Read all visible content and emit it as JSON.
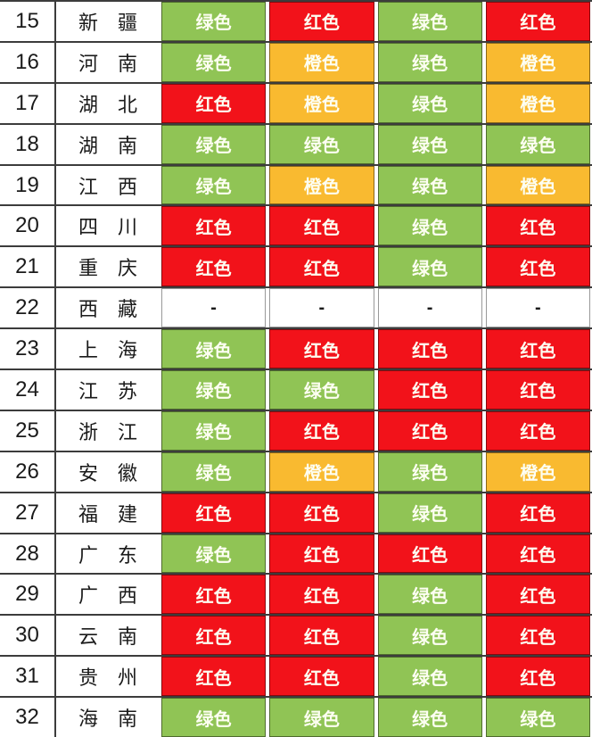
{
  "chart_data": {
    "type": "table",
    "status_labels": {
      "green": "绿色",
      "red": "红色",
      "orange": "橙色",
      "none": "-"
    },
    "status_colors": {
      "green": "#90C455",
      "red": "#F2121A",
      "orange": "#F9BA30",
      "none": "#FFFFFF"
    },
    "grid_color": "#3C3C3C",
    "status_text_color": "#FDFEF2",
    "none_text_color": "#1A1A1A",
    "rows": [
      {
        "num": "15",
        "province": "新　疆",
        "statuses": [
          "green",
          "red",
          "green",
          "red"
        ]
      },
      {
        "num": "16",
        "province": "河　南",
        "statuses": [
          "green",
          "orange",
          "green",
          "orange"
        ]
      },
      {
        "num": "17",
        "province": "湖　北",
        "statuses": [
          "red",
          "orange",
          "green",
          "orange"
        ]
      },
      {
        "num": "18",
        "province": "湖　南",
        "statuses": [
          "green",
          "green",
          "green",
          "green"
        ]
      },
      {
        "num": "19",
        "province": "江　西",
        "statuses": [
          "green",
          "orange",
          "green",
          "orange"
        ]
      },
      {
        "num": "20",
        "province": "四　川",
        "statuses": [
          "red",
          "red",
          "green",
          "red"
        ]
      },
      {
        "num": "21",
        "province": "重　庆",
        "statuses": [
          "red",
          "red",
          "green",
          "red"
        ]
      },
      {
        "num": "22",
        "province": "西　藏",
        "statuses": [
          "none",
          "none",
          "none",
          "none"
        ]
      },
      {
        "num": "23",
        "province": "上　海",
        "statuses": [
          "green",
          "red",
          "red",
          "red"
        ]
      },
      {
        "num": "24",
        "province": "江　苏",
        "statuses": [
          "green",
          "green",
          "red",
          "red"
        ]
      },
      {
        "num": "25",
        "province": "浙　江",
        "statuses": [
          "green",
          "red",
          "red",
          "red"
        ]
      },
      {
        "num": "26",
        "province": "安　徽",
        "statuses": [
          "green",
          "orange",
          "green",
          "orange"
        ]
      },
      {
        "num": "27",
        "province": "福　建",
        "statuses": [
          "red",
          "red",
          "green",
          "red"
        ]
      },
      {
        "num": "28",
        "province": "广　东",
        "statuses": [
          "green",
          "red",
          "red",
          "red"
        ]
      },
      {
        "num": "29",
        "province": "广　西",
        "statuses": [
          "red",
          "red",
          "green",
          "red"
        ]
      },
      {
        "num": "30",
        "province": "云　南",
        "statuses": [
          "red",
          "red",
          "green",
          "red"
        ]
      },
      {
        "num": "31",
        "province": "贵　州",
        "statuses": [
          "red",
          "red",
          "green",
          "red"
        ]
      },
      {
        "num": "32",
        "province": "海　南",
        "statuses": [
          "green",
          "green",
          "green",
          "green"
        ]
      }
    ]
  }
}
